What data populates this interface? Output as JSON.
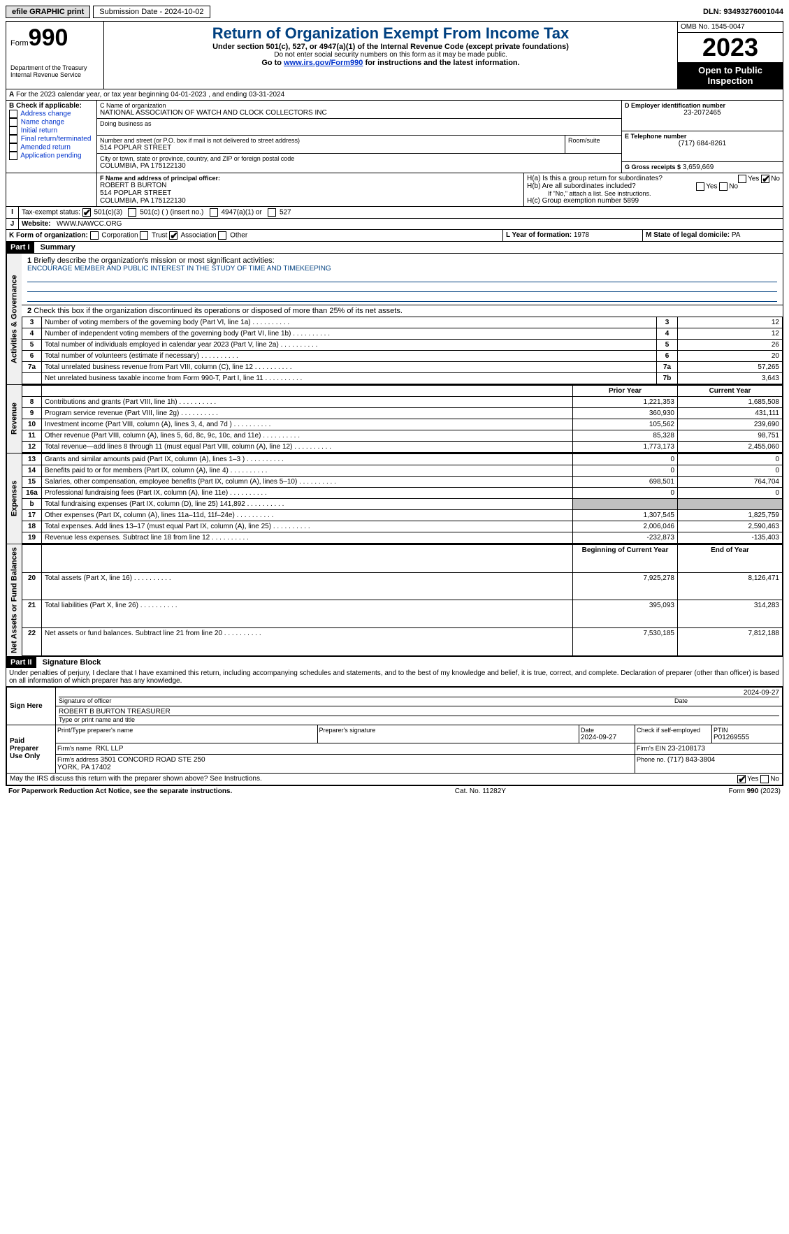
{
  "topbar": {
    "efile": "efile GRAPHIC print",
    "submission_label": "Submission Date - 2024-10-02",
    "dln": "DLN: 93493276001044"
  },
  "header": {
    "form_label": "Form",
    "form_num": "990",
    "dept": "Department of the Treasury\nInternal Revenue Service",
    "title": "Return of Organization Exempt From Income Tax",
    "sub": "Under section 501(c), 527, or 4947(a)(1) of the Internal Revenue Code (except private foundations)",
    "sub2": "Do not enter social security numbers on this form as it may be made public.",
    "goto_prefix": "Go to ",
    "goto_link": "www.irs.gov/Form990",
    "goto_suffix": " for instructions and the latest information.",
    "omb": "OMB No. 1545-0047",
    "year": "2023",
    "open": "Open to Public Inspection"
  },
  "lineA": "For the 2023 calendar year, or tax year beginning 04-01-2023   , and ending 03-31-2024",
  "boxB": {
    "title": "B Check if applicable:",
    "items": [
      "Address change",
      "Name change",
      "Initial return",
      "Final return/terminated",
      "Amended return",
      "Application pending"
    ]
  },
  "boxC": {
    "name_label": "C Name of organization",
    "name": "NATIONAL ASSOCIATION OF WATCH AND CLOCK COLLECTORS INC",
    "dba_label": "Doing business as",
    "street_label": "Number and street (or P.O. box if mail is not delivered to street address)",
    "street": "514 POPLAR STREET",
    "room_label": "Room/suite",
    "city_label": "City or town, state or province, country, and ZIP or foreign postal code",
    "city": "COLUMBIA, PA  175122130"
  },
  "boxD": {
    "label": "D Employer identification number",
    "val": "23-2072465"
  },
  "boxE": {
    "label": "E Telephone number",
    "val": "(717) 684-8261"
  },
  "boxG": {
    "label": "G Gross receipts $",
    "val": "3,659,669"
  },
  "boxF": {
    "label": "F  Name and address of principal officer:",
    "name": "ROBERT B BURTON",
    "street": "514 POPLAR STREET",
    "city": "COLUMBIA, PA  175122130"
  },
  "boxH": {
    "a": "H(a)  Is this a group return for subordinates?",
    "b": "H(b)  Are all subordinates included?",
    "b_note": "If \"No,\" attach a list. See instructions.",
    "c": "H(c)  Group exemption number ",
    "c_val": "5899",
    "yes": "Yes",
    "no": "No"
  },
  "taxexempt": {
    "label": "Tax-exempt status:",
    "opts": [
      "501(c)(3)",
      "501(c) (  ) (insert no.)",
      "4947(a)(1) or",
      "527"
    ]
  },
  "website": {
    "label": "Website:",
    "val": "WWW.NAWCC.ORG"
  },
  "boxK": {
    "label": "K Form of organization:",
    "opts": [
      "Corporation",
      "Trust",
      "Association",
      "Other"
    ]
  },
  "boxL": {
    "label": "L Year of formation:",
    "val": "1978"
  },
  "boxM": {
    "label": "M State of legal domicile:",
    "val": "PA"
  },
  "parts": {
    "p1": "Part I",
    "p1t": "Summary",
    "p2": "Part II",
    "p2t": "Signature Block"
  },
  "summary": {
    "l1_label": "Briefly describe the organization's mission or most significant activities:",
    "l1_val": "ENCOURAGE MEMBER AND PUBLIC INTEREST IN THE STUDY OF TIME AND TIMEKEEPING",
    "l2": "Check this box      if the organization discontinued its operations or disposed of more than 25% of its net assets.",
    "rows_gov": [
      {
        "n": "3",
        "d": "Number of voting members of the governing body (Part VI, line 1a)",
        "ln": "3",
        "v": "12"
      },
      {
        "n": "4",
        "d": "Number of independent voting members of the governing body (Part VI, line 1b)",
        "ln": "4",
        "v": "12"
      },
      {
        "n": "5",
        "d": "Total number of individuals employed in calendar year 2023 (Part V, line 2a)",
        "ln": "5",
        "v": "26"
      },
      {
        "n": "6",
        "d": "Total number of volunteers (estimate if necessary)",
        "ln": "6",
        "v": "20"
      },
      {
        "n": "7a",
        "d": "Total unrelated business revenue from Part VIII, column (C), line 12",
        "ln": "7a",
        "v": "57,265"
      },
      {
        "n": "",
        "d": "Net unrelated business taxable income from Form 990-T, Part I, line 11",
        "ln": "7b",
        "v": "3,643"
      }
    ],
    "col_prior": "Prior Year",
    "col_curr": "Current Year",
    "rows_rev": [
      {
        "n": "8",
        "d": "Contributions and grants (Part VIII, line 1h)",
        "p": "1,221,353",
        "c": "1,685,508"
      },
      {
        "n": "9",
        "d": "Program service revenue (Part VIII, line 2g)",
        "p": "360,930",
        "c": "431,111"
      },
      {
        "n": "10",
        "d": "Investment income (Part VIII, column (A), lines 3, 4, and 7d )",
        "p": "105,562",
        "c": "239,690"
      },
      {
        "n": "11",
        "d": "Other revenue (Part VIII, column (A), lines 5, 6d, 8c, 9c, 10c, and 11e)",
        "p": "85,328",
        "c": "98,751"
      },
      {
        "n": "12",
        "d": "Total revenue—add lines 8 through 11 (must equal Part VIII, column (A), line 12)",
        "p": "1,773,173",
        "c": "2,455,060"
      }
    ],
    "rows_exp": [
      {
        "n": "13",
        "d": "Grants and similar amounts paid (Part IX, column (A), lines 1–3 )",
        "p": "0",
        "c": "0"
      },
      {
        "n": "14",
        "d": "Benefits paid to or for members (Part IX, column (A), line 4)",
        "p": "0",
        "c": "0"
      },
      {
        "n": "15",
        "d": "Salaries, other compensation, employee benefits (Part IX, column (A), lines 5–10)",
        "p": "698,501",
        "c": "764,704"
      },
      {
        "n": "16a",
        "d": "Professional fundraising fees (Part IX, column (A), line 11e)",
        "p": "0",
        "c": "0"
      },
      {
        "n": "b",
        "d": "Total fundraising expenses (Part IX, column (D), line 25) 141,892",
        "p": "",
        "c": "",
        "gray": true
      },
      {
        "n": "17",
        "d": "Other expenses (Part IX, column (A), lines 11a–11d, 11f–24e)",
        "p": "1,307,545",
        "c": "1,825,759"
      },
      {
        "n": "18",
        "d": "Total expenses. Add lines 13–17 (must equal Part IX, column (A), line 25)",
        "p": "2,006,046",
        "c": "2,590,463"
      },
      {
        "n": "19",
        "d": "Revenue less expenses. Subtract line 18 from line 12",
        "p": "-232,873",
        "c": "-135,403"
      }
    ],
    "col_beg": "Beginning of Current Year",
    "col_end": "End of Year",
    "rows_na": [
      {
        "n": "20",
        "d": "Total assets (Part X, line 16)",
        "p": "7,925,278",
        "c": "8,126,471"
      },
      {
        "n": "21",
        "d": "Total liabilities (Part X, line 26)",
        "p": "395,093",
        "c": "314,283"
      },
      {
        "n": "22",
        "d": "Net assets or fund balances. Subtract line 21 from line 20",
        "p": "7,530,185",
        "c": "7,812,188"
      }
    ],
    "vlabels": {
      "gov": "Activities & Governance",
      "rev": "Revenue",
      "exp": "Expenses",
      "na": "Net Assets or Fund Balances"
    }
  },
  "sig": {
    "perjury": "Under penalties of perjury, I declare that I have examined this return, including accompanying schedules and statements, and to the best of my knowledge and belief, it is true, correct, and complete. Declaration of preparer (other than officer) is based on all information of which preparer has any knowledge.",
    "sign_here": "Sign Here",
    "sig_officer": "Signature of officer",
    "officer": "ROBERT B BURTON  TREASURER",
    "type_name": "Type or print name and title",
    "date_label": "Date",
    "date1": "2024-09-27",
    "paid": "Paid Preparer Use Only",
    "prep_name_h": "Print/Type preparer's name",
    "prep_sig_h": "Preparer's signature",
    "date2": "2024-09-27",
    "check_self": "Check       if self-employed",
    "ptin_h": "PTIN",
    "ptin": "P01269555",
    "firm_name_h": "Firm's name",
    "firm_name": "RKL LLP",
    "firm_ein_h": "Firm's EIN",
    "firm_ein": "23-2108173",
    "firm_addr_h": "Firm's address",
    "firm_addr": "3501 CONCORD ROAD STE 250\nYORK, PA  17402",
    "phone_h": "Phone no.",
    "phone": "(717) 843-3804",
    "discuss": "May the IRS discuss this return with the preparer shown above? See Instructions."
  },
  "footer": {
    "left": "For Paperwork Reduction Act Notice, see the separate instructions.",
    "mid": "Cat. No. 11282Y",
    "right_form": "Form 990 (2023)"
  },
  "colors": {
    "title_blue": "#004080",
    "link_blue": "#0033cc"
  }
}
